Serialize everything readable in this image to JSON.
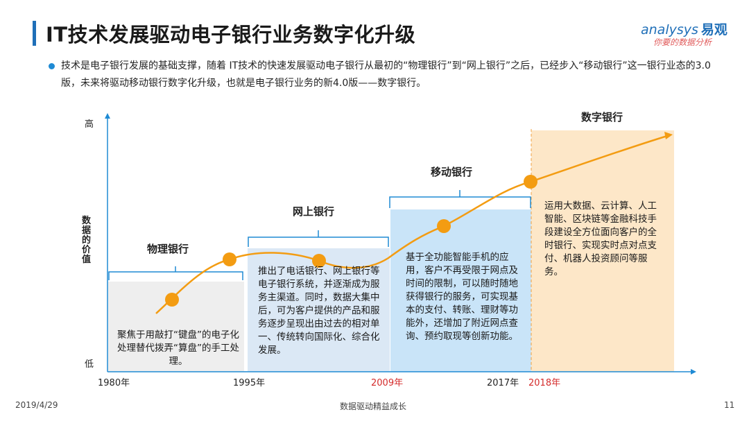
{
  "title": "IT技术发展驱动电子银行业务数字化升级",
  "logo": {
    "brand": "analysys",
    "brand_cn": "易观",
    "slogan": "你要的数据分析"
  },
  "bullet": "技术是电子银行发展的基础支撑，随着 IT技术的快速发展驱动电子银行从最初的“物理银行”到“网上银行”之后，已经步入“移动银行”这一银行业态的3.0版，未来将驱动移动银行数字化升级，也就是电子银行业务的新4.0版——数字银行。",
  "axis": {
    "high": "高",
    "low": "低",
    "ylabel": "数据的价值"
  },
  "stages": [
    {
      "title": "物理银行",
      "desc": "聚焦于用敲打“键盘”的电子化处理替代拨弄“算盘”的手工处理。"
    },
    {
      "title": "网上银行",
      "desc": "推出了电话银行、网上银行等电子银行系统，并逐渐成为服务主渠道。同时，数据大集中后，可为客户提供的产品和服务逐步呈现出由过去的相对单一、传统转向国际化、综合化发展。"
    },
    {
      "title": "移动银行",
      "desc": "基于全功能智能手机的应用，客户不再受限于网点及时间的限制，可以随时随地获得银行的服务，可实现基本的支付、转账、理财等功能外，还增加了附近网点查询、预约取现等创新功能。"
    },
    {
      "title": "数字银行",
      "desc": "运用大数据、云计算、人工智能、区块链等金融科技手段建设全方位面向客户的全时银行、实现实时点对点支付、机器人投资顾问等服务。"
    }
  ],
  "years": [
    {
      "label": "1980年",
      "highlight": false
    },
    {
      "label": "1995年",
      "highlight": false
    },
    {
      "label": "2009年",
      "highlight": true
    },
    {
      "label": "2017年",
      "highlight": false
    },
    {
      "label": "2018年",
      "highlight": true
    }
  ],
  "colors": {
    "accent": "#f39c12",
    "axis": "#1f8ad4",
    "highlight": "#d42a2a"
  },
  "footer": {
    "date": "2019/4/29",
    "slogan": "数据驱动精益成长",
    "page": "11"
  }
}
